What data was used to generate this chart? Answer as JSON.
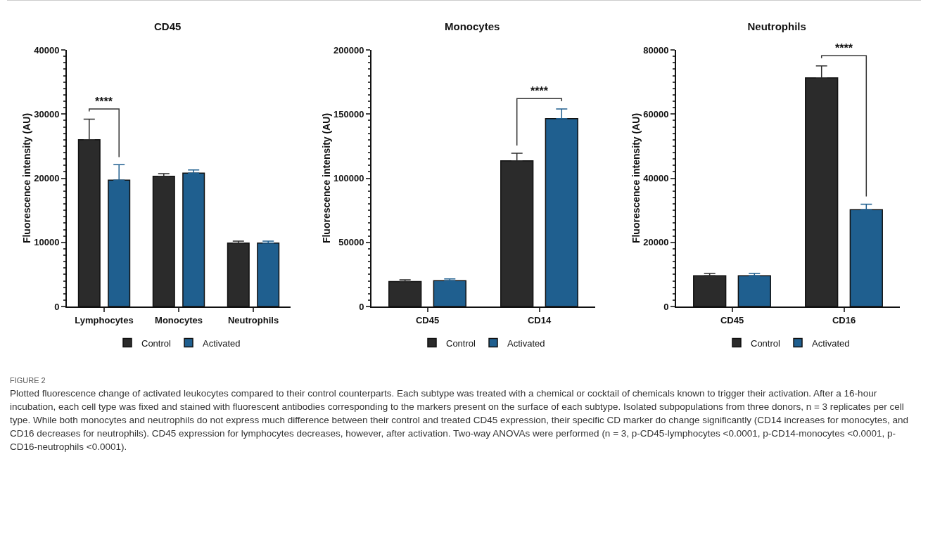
{
  "chart_data": [
    {
      "type": "bar",
      "title": "CD45",
      "ylabel": "Fluorescence intensity (AU)",
      "categories": [
        "Lymphocytes",
        "Monocytes",
        "Neutrophils"
      ],
      "series": [
        {
          "name": "Control",
          "color": "#2b2b2b",
          "values": [
            26000,
            20300,
            9900
          ],
          "errors": [
            3200,
            400,
            300
          ]
        },
        {
          "name": "Activated",
          "color": "#1f5f8f",
          "values": [
            19700,
            20800,
            9900
          ],
          "errors": [
            2400,
            500,
            300
          ]
        }
      ],
      "ylim": [
        0,
        40000
      ],
      "yticks": [
        0,
        10000,
        20000,
        30000,
        40000
      ],
      "grid": false,
      "legend": "bottom",
      "annotations": [
        "****",
        "FIGURE 2",
        "Plotted fluorescence change of activated leukocytes compared to their control counterparts. Each subtype was treated with a chemical or cocktail of chemicals known to trigger their activation. After a 16-hour incubation, each cell type was fixed and stained with fluorescent antibodies corresponding to the markers present on the surface of each subtype. Isolated subpopulations from three donors, n = 3 replicates per cell type. While both monocytes and neutrophils do not express much difference between their control and treated CD45 expression, their specific CD marker do change significantly (CD14 increases for monocytes, and CD16 decreases for neutrophils). CD45 expression for lymphocytes decreases, however, after activation. Two-way ANOVAs were performed (n = 3, p-CD45-lymphocytes <0.0001, p-CD14-monocytes <0.0001, p-CD16-neutrophils <0.0001)."
      ]
    },
    {
      "type": "bar",
      "title": "Monocytes",
      "ylabel": "Fluorescence intensity (AU)",
      "categories": [
        "CD45",
        "CD14"
      ],
      "series": [
        {
          "name": "Control",
          "color": "#2b2b2b",
          "values": [
            19500,
            113500
          ],
          "errors": [
            1300,
            6000
          ]
        },
        {
          "name": "Activated",
          "color": "#1f5f8f",
          "values": [
            20200,
            146500
          ],
          "errors": [
            1300,
            7500
          ]
        }
      ],
      "ylim": [
        0,
        200000
      ],
      "yticks": [
        0,
        50000,
        100000,
        150000,
        200000
      ],
      "grid": false,
      "legend": "bottom",
      "annotations": [
        "****"
      ]
    },
    {
      "type": "bar",
      "title": "Neutrophils",
      "ylabel": "Fluorescence intensity (AU)",
      "categories": [
        "CD45",
        "CD16"
      ],
      "series": [
        {
          "name": "Control",
          "color": "#2b2b2b",
          "values": [
            9600,
            71300
          ],
          "errors": [
            700,
            3700
          ]
        },
        {
          "name": "Activated",
          "color": "#1f5f8f",
          "values": [
            9600,
            30200
          ],
          "errors": [
            700,
            1700
          ]
        }
      ],
      "ylim": [
        0,
        80000
      ],
      "yticks": [
        0,
        20000,
        40000,
        60000,
        80000
      ],
      "grid": false,
      "legend": "bottom",
      "annotations": [
        "****"
      ]
    }
  ]
}
